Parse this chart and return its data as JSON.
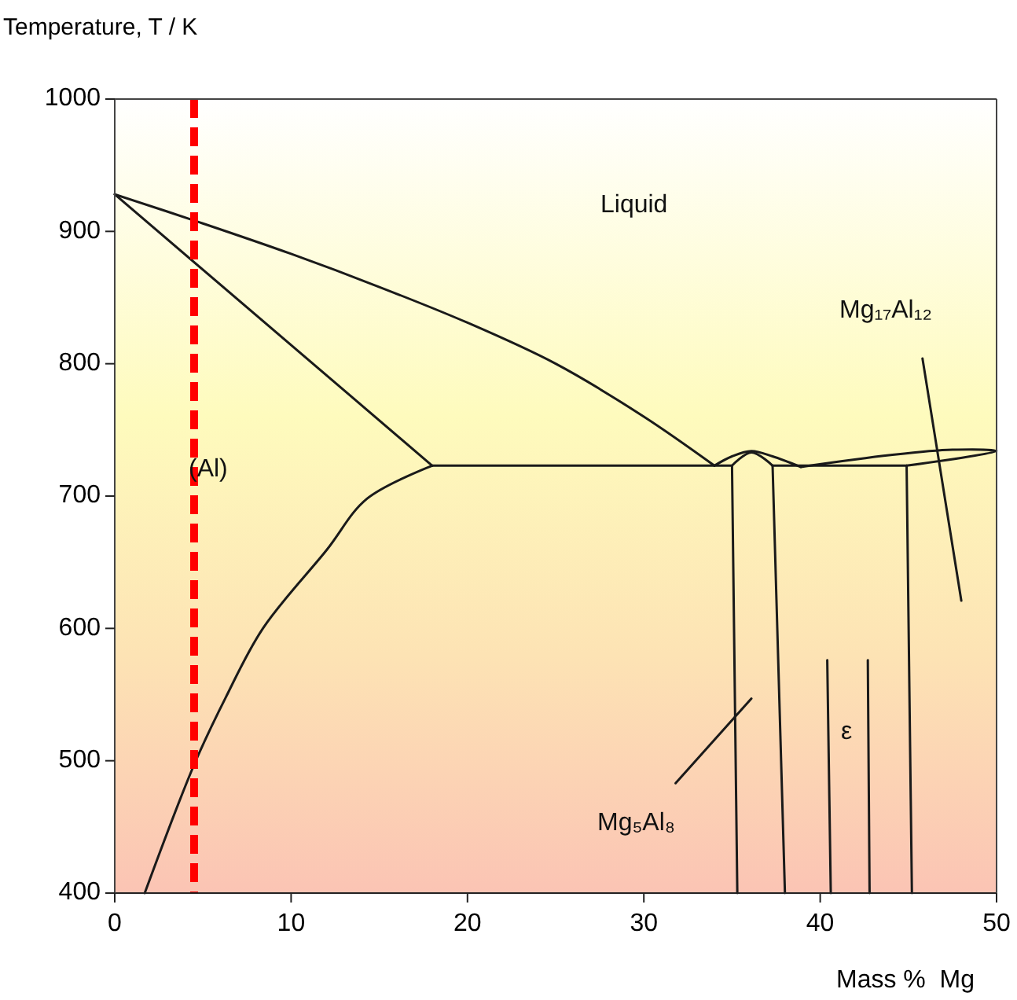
{
  "chart_data": {
    "type": "line",
    "ylabel": "Temperature, T / K",
    "xlabel": "Mass %  Mg",
    "xlim": [
      0,
      50
    ],
    "xticks": [
      0,
      10,
      20,
      30,
      40,
      50
    ],
    "ylim": [
      400,
      1000
    ],
    "yticks": [
      400,
      500,
      600,
      700,
      800,
      900,
      1000
    ],
    "line_style": "solid",
    "series": [
      {
        "color": "#1a1a1a",
        "x": [
          0,
          5,
          10,
          15,
          20,
          25,
          30,
          34
        ],
        "values": [
          928,
          906,
          883,
          858,
          831,
          800,
          760,
          723
        ]
      },
      {
        "color": "#1a1a1a",
        "x": [
          0,
          18
        ],
        "values": [
          928,
          723
        ]
      },
      {
        "color": "#1a1a1a",
        "x": [
          18,
          14.3,
          12,
          8.4,
          6.3,
          4.5,
          1.7
        ],
        "values": [
          723,
          698,
          659,
          600,
          548,
          497,
          400
        ]
      },
      {
        "color": "#1a1a1a",
        "x": [
          18,
          35
        ],
        "values": [
          723,
          723
        ]
      },
      {
        "color": "#1a1a1a",
        "x": [
          34,
          35,
          36.1,
          37.3,
          38.9
        ],
        "values": [
          723,
          730,
          734,
          730,
          722
        ]
      },
      {
        "color": "#1a1a1a",
        "x": [
          35,
          36.1,
          37.3
        ],
        "values": [
          723,
          733,
          723
        ]
      },
      {
        "color": "#1a1a1a",
        "x": [
          35,
          35.3
        ],
        "values": [
          723,
          400
        ]
      },
      {
        "color": "#1a1a1a",
        "x": [
          37.3,
          38
        ],
        "values": [
          723,
          400
        ]
      },
      {
        "color": "#1a1a1a",
        "x": [
          37.3,
          44.9
        ],
        "values": [
          723,
          723
        ]
      },
      {
        "color": "#1a1a1a",
        "x": [
          38.9,
          44,
          47.5,
          50,
          44.9
        ],
        "values": [
          722,
          731,
          735,
          734,
          723
        ]
      },
      {
        "color": "#1a1a1a",
        "x": [
          44.9,
          45.2
        ],
        "values": [
          723,
          400
        ]
      },
      {
        "color": "#1a1a1a",
        "x": [
          40.4,
          40.6
        ],
        "values": [
          576,
          400
        ]
      },
      {
        "color": "#1a1a1a",
        "x": [
          42.7,
          42.8
        ],
        "values": [
          576,
          400
        ]
      },
      {
        "color": "#1a1a1a",
        "x": [
          45.8,
          48
        ],
        "values": [
          804,
          621
        ]
      },
      {
        "color": "#1a1a1a",
        "x": [
          36.1,
          31.8
        ],
        "values": [
          547,
          483
        ]
      }
    ],
    "ref_lines": [
      {
        "axis": "x",
        "value": 4.5,
        "color": "#ff0000",
        "line_style": "dashed"
      }
    ],
    "annotations": [
      "Liquid",
      "(Al)",
      "Mg₁₇Al₁₂",
      "ε",
      "Mg₅Al₈"
    ]
  }
}
